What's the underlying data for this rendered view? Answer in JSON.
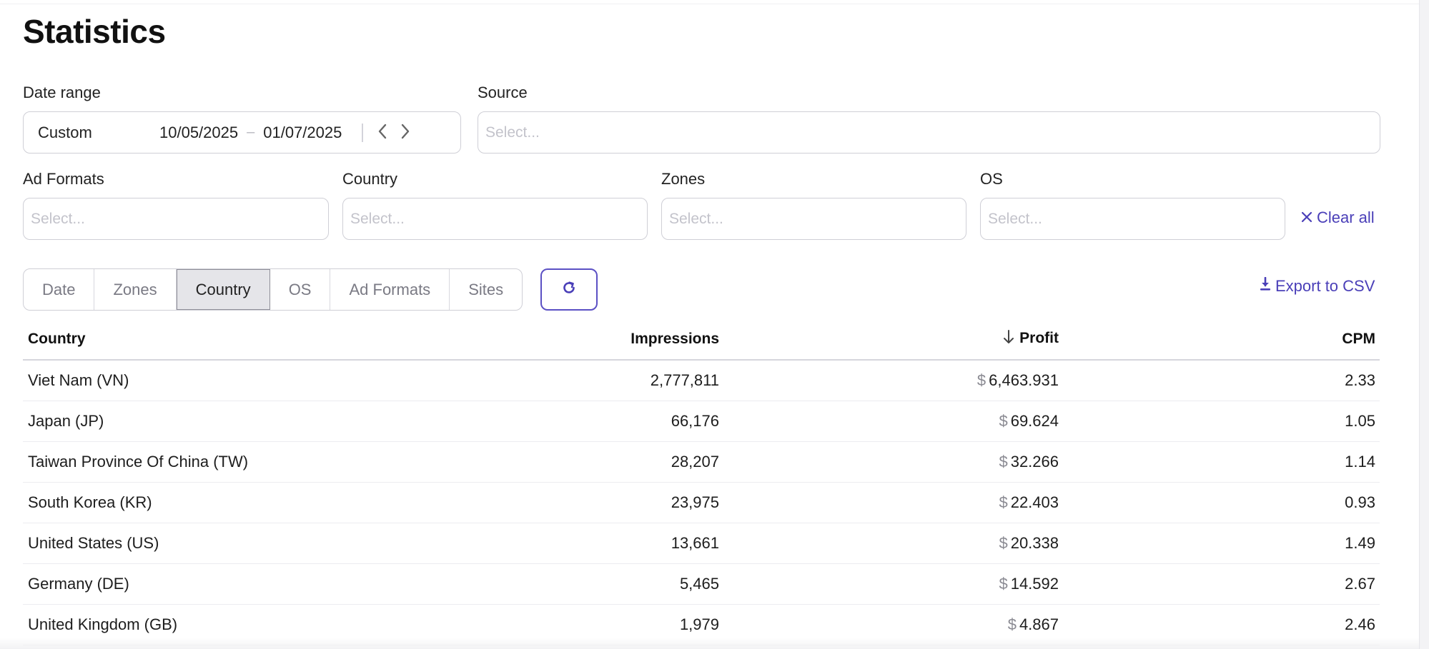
{
  "page": {
    "title": "Statistics"
  },
  "filters": {
    "date_range": {
      "label": "Date range",
      "preset": "Custom",
      "from": "10/05/2025",
      "to": "01/07/2025",
      "dash": "–"
    },
    "source": {
      "label": "Source",
      "placeholder": "Select..."
    },
    "ad_formats": {
      "label": "Ad Formats",
      "placeholder": "Select..."
    },
    "country": {
      "label": "Country",
      "placeholder": "Select..."
    },
    "zones": {
      "label": "Zones",
      "placeholder": "Select..."
    },
    "os": {
      "label": "OS",
      "placeholder": "Select..."
    },
    "clear_all": "Clear all"
  },
  "group_by_tabs": [
    {
      "label": "Date"
    },
    {
      "label": "Zones"
    },
    {
      "label": "Country",
      "active": true
    },
    {
      "label": "OS"
    },
    {
      "label": "Ad Formats"
    },
    {
      "label": "Sites"
    }
  ],
  "export_label": "Export to CSV",
  "table": {
    "columns": {
      "country": "Country",
      "impressions": "Impressions",
      "profit": "Profit",
      "cpm": "CPM"
    },
    "currency_symbol": "$",
    "rows": [
      {
        "country": "Viet Nam (VN)",
        "impressions": "2,777,811",
        "profit": "6,463.931",
        "cpm": "2.33"
      },
      {
        "country": "Japan (JP)",
        "impressions": "66,176",
        "profit": "69.624",
        "cpm": "1.05"
      },
      {
        "country": "Taiwan Province Of China (TW)",
        "impressions": "28,207",
        "profit": "32.266",
        "cpm": "1.14"
      },
      {
        "country": "South Korea (KR)",
        "impressions": "23,975",
        "profit": "22.403",
        "cpm": "0.93"
      },
      {
        "country": "United States (US)",
        "impressions": "13,661",
        "profit": "20.338",
        "cpm": "1.49"
      },
      {
        "country": "Germany (DE)",
        "impressions": "5,465",
        "profit": "14.592",
        "cpm": "2.67"
      },
      {
        "country": "United Kingdom (GB)",
        "impressions": "1,979",
        "profit": "4.867",
        "cpm": "2.46"
      }
    ]
  },
  "colors": {
    "accent": "#4a3fb8",
    "border": "#cfcfd6",
    "active_tab_bg": "#e5e5e9"
  }
}
